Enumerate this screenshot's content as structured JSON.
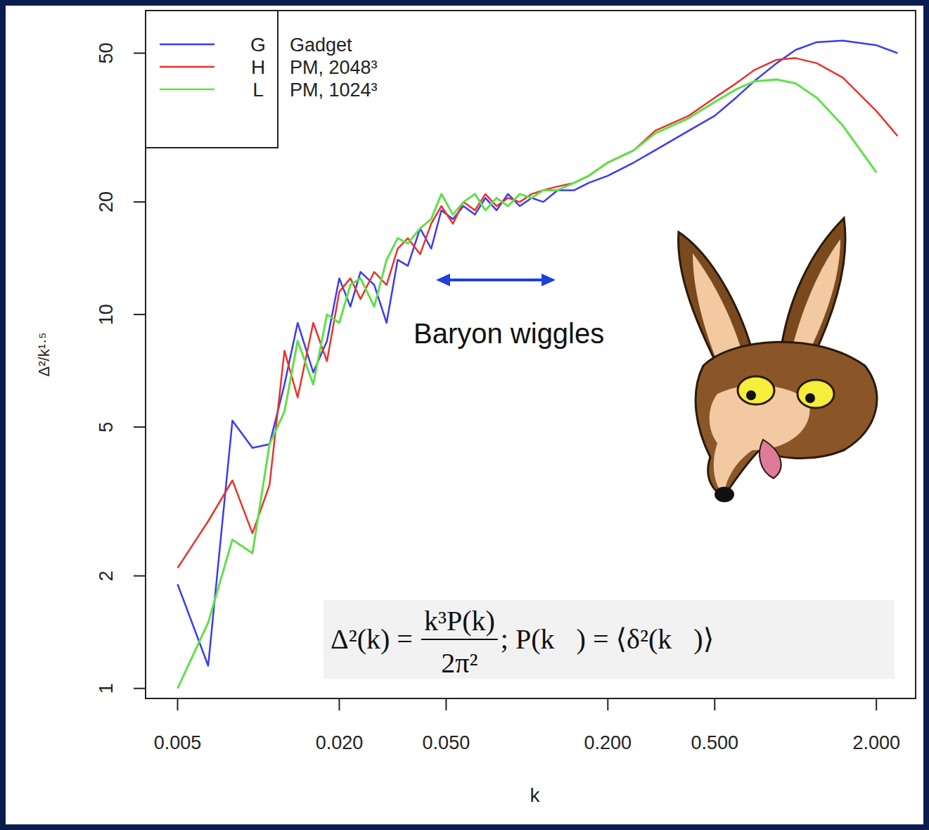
{
  "chart_data": {
    "type": "line",
    "x_label": "k",
    "y_label": "Δ²/k¹·⁵",
    "log": true,
    "legend": "top-left",
    "xlim": [
      0.0038,
      2.8
    ],
    "ylim": [
      0.94,
      65
    ],
    "xticks": [
      {
        "value": 0.005,
        "label": "0.005"
      },
      {
        "value": 0.02,
        "label": "0.020"
      },
      {
        "value": 0.05,
        "label": "0.050"
      },
      {
        "value": 0.2,
        "label": "0.200"
      },
      {
        "value": 0.5,
        "label": "0.500"
      },
      {
        "value": 2,
        "label": "2.000"
      }
    ],
    "yticks": [
      1,
      2,
      5,
      10,
      20,
      50
    ],
    "annotations": [
      "Baryon wiggles"
    ],
    "formula": {
      "lhs": "Δ²(k) =",
      "numerator": "k³P(k)",
      "denominator": "2π²",
      "rhs": "; P(k⃗) = ⟨δ²(k⃗)⟩"
    },
    "x": [
      0.005,
      0.0065,
      0.008,
      0.0095,
      0.011,
      0.0125,
      0.014,
      0.016,
      0.018,
      0.02,
      0.022,
      0.024,
      0.027,
      0.03,
      0.033,
      0.036,
      0.04,
      0.044,
      0.048,
      0.053,
      0.058,
      0.064,
      0.07,
      0.077,
      0.085,
      0.094,
      0.104,
      0.115,
      0.13,
      0.15,
      0.17,
      0.2,
      0.25,
      0.3,
      0.4,
      0.5,
      0.6,
      0.7,
      0.85,
      1.0,
      1.2,
      1.5,
      2.0,
      2.4
    ],
    "series": [
      {
        "name": "G",
        "label": "Gadget",
        "color": "#3b3bf0",
        "values": [
          1.9,
          1.15,
          5.2,
          4.4,
          4.5,
          6.5,
          9.5,
          7.0,
          8.5,
          12.5,
          10.5,
          13,
          12,
          9.5,
          14,
          13.5,
          17,
          15,
          19,
          18,
          19.5,
          18.5,
          20.5,
          19,
          21,
          19.5,
          20.5,
          20,
          21.5,
          21.5,
          22.5,
          23.5,
          25.5,
          27.5,
          31,
          34,
          38,
          42,
          47,
          51,
          53.5,
          54,
          52.5,
          50
        ]
      },
      {
        "name": "H",
        "label": "PM, 2048³",
        "color": "#e8342a",
        "values": [
          2.1,
          2.8,
          3.6,
          2.6,
          3.5,
          8,
          6,
          9.5,
          7.5,
          11.5,
          12.5,
          11,
          13,
          12,
          15,
          16,
          14.5,
          17.5,
          19.5,
          17.5,
          20,
          19,
          21,
          19.5,
          20.5,
          20,
          21,
          21.5,
          22,
          22.5,
          23.5,
          25.5,
          27.5,
          31,
          34,
          38,
          41.5,
          45,
          48,
          48.5,
          47,
          43,
          35,
          30
        ]
      },
      {
        "name": "L",
        "label": "PM, 1024³",
        "color": "#5fe04a",
        "values": [
          1.0,
          1.5,
          2.5,
          2.3,
          4.5,
          5.5,
          8.5,
          6.5,
          10,
          9.5,
          12,
          12.5,
          10.5,
          14,
          16,
          15.5,
          17,
          18,
          21,
          18.5,
          20,
          21,
          19,
          20.5,
          19.5,
          21,
          20.5,
          21.5,
          21.5,
          22.5,
          23.5,
          25.5,
          27.5,
          30.5,
          33.5,
          37,
          40,
          42,
          42.5,
          41.5,
          38,
          32,
          24,
          null
        ]
      }
    ]
  }
}
